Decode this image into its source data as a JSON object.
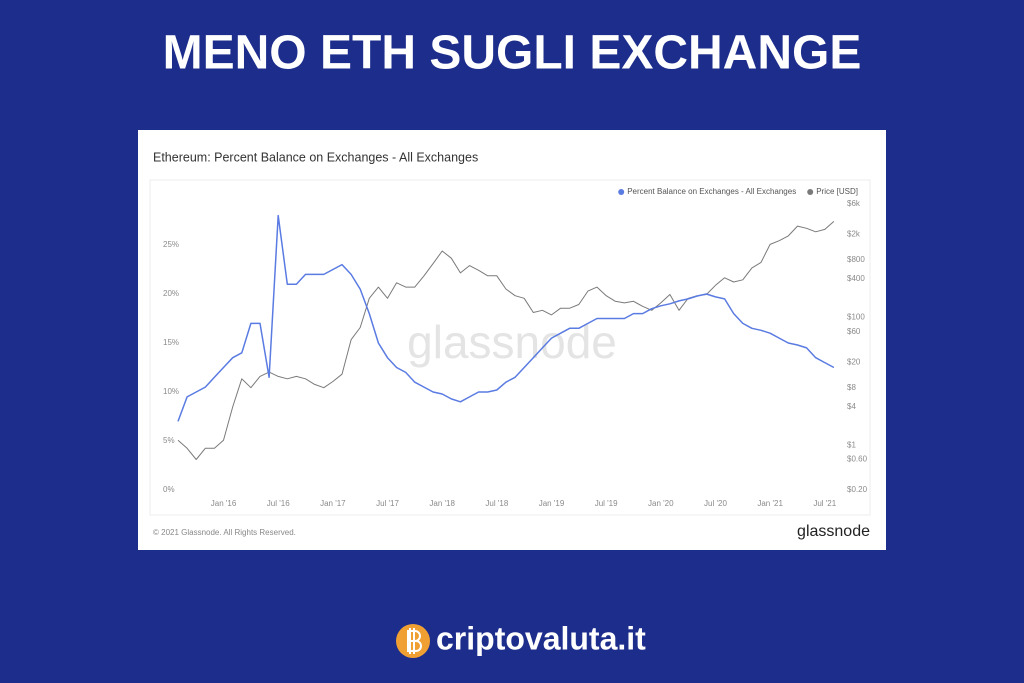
{
  "header": {
    "title": "MENO ETH SUGLI EXCHANGE"
  },
  "chart_data": {
    "type": "line",
    "title": "Ethereum: Percent Balance on Exchanges - All Exchanges",
    "watermark": "glassnode",
    "credit": "© 2021 Glassnode. All Rights Reserved.",
    "logo": "glassnode",
    "x": [
      "2015-08",
      "2015-09",
      "2015-10",
      "2015-11",
      "2015-12",
      "2016-01",
      "2016-02",
      "2016-03",
      "2016-04",
      "2016-05",
      "2016-06",
      "2016-07",
      "2016-08",
      "2016-09",
      "2016-10",
      "2016-11",
      "2016-12",
      "2017-01",
      "2017-02",
      "2017-03",
      "2017-04",
      "2017-05",
      "2017-06",
      "2017-07",
      "2017-08",
      "2017-09",
      "2017-10",
      "2017-11",
      "2017-12",
      "2018-01",
      "2018-02",
      "2018-03",
      "2018-04",
      "2018-05",
      "2018-06",
      "2018-07",
      "2018-08",
      "2018-09",
      "2018-10",
      "2018-11",
      "2018-12",
      "2019-01",
      "2019-02",
      "2019-03",
      "2019-04",
      "2019-05",
      "2019-06",
      "2019-07",
      "2019-08",
      "2019-09",
      "2019-10",
      "2019-11",
      "2019-12",
      "2020-01",
      "2020-02",
      "2020-03",
      "2020-04",
      "2020-05",
      "2020-06",
      "2020-07",
      "2020-08",
      "2020-09",
      "2020-10",
      "2020-11",
      "2020-12",
      "2021-01",
      "2021-02",
      "2021-03",
      "2021-04",
      "2021-05",
      "2021-06",
      "2021-07",
      "2021-08"
    ],
    "xlim": [
      "2015-08",
      "2021-09"
    ],
    "xticks": [
      {
        "value": "2016-01",
        "label": "Jan '16"
      },
      {
        "value": "2016-07",
        "label": "Jul '16"
      },
      {
        "value": "2017-01",
        "label": "Jan '17"
      },
      {
        "value": "2017-07",
        "label": "Jul '17"
      },
      {
        "value": "2018-01",
        "label": "Jan '18"
      },
      {
        "value": "2018-07",
        "label": "Jul '18"
      },
      {
        "value": "2019-01",
        "label": "Jan '19"
      },
      {
        "value": "2019-07",
        "label": "Jul '19"
      },
      {
        "value": "2020-01",
        "label": "Jan '20"
      },
      {
        "value": "2020-07",
        "label": "Jul '20"
      },
      {
        "value": "2021-01",
        "label": "Jan '21"
      },
      {
        "value": "2021-07",
        "label": "Jul '21"
      }
    ],
    "ylim": [
      0,
      30
    ],
    "yticks": [
      {
        "value": 0,
        "label": "0%"
      },
      {
        "value": 5,
        "label": "5%"
      },
      {
        "value": 10,
        "label": "10%"
      },
      {
        "value": 15,
        "label": "15%"
      },
      {
        "value": 20,
        "label": "20%"
      },
      {
        "value": 25,
        "label": "25%"
      }
    ],
    "y2lim": [
      0.2,
      8000
    ],
    "y2scale": "log",
    "y2ticks": [
      {
        "value": 0.2,
        "label": "$0.20"
      },
      {
        "value": 0.6,
        "label": "$0.60"
      },
      {
        "value": 1,
        "label": "$1"
      },
      {
        "value": 4,
        "label": "$4"
      },
      {
        "value": 8,
        "label": "$8"
      },
      {
        "value": 20,
        "label": "$20"
      },
      {
        "value": 60,
        "label": "$60"
      },
      {
        "value": 100,
        "label": "$100"
      },
      {
        "value": 400,
        "label": "$400"
      },
      {
        "value": 800,
        "label": "$800"
      },
      {
        "value": 2000,
        "label": "$2k"
      },
      {
        "value": 6000,
        "label": "$6k"
      }
    ],
    "grid": false,
    "legend": "top-right",
    "series": [
      {
        "name": "Percent Balance on Exchanges - All Exchanges",
        "color": "#5a7be2",
        "values": [
          7,
          9.5,
          10,
          10.5,
          11.5,
          12.5,
          13.5,
          14,
          17,
          17,
          11.5,
          28,
          21,
          21,
          22,
          22,
          22,
          22.5,
          23,
          22,
          20.5,
          18,
          15,
          13.5,
          12.5,
          12,
          11,
          10.5,
          10,
          9.8,
          9.3,
          9,
          9.5,
          10,
          10,
          10.2,
          11,
          11.5,
          12.5,
          13.5,
          14.5,
          15.5,
          16,
          16.5,
          16.5,
          17,
          17.5,
          17.5,
          17.5,
          17.5,
          18,
          18,
          18.5,
          18.8,
          19,
          19.3,
          19.5,
          19.8,
          20,
          19.7,
          19.5,
          18,
          17,
          16.5,
          16.3,
          16,
          15.5,
          15,
          14.8,
          14.5,
          13.5,
          13,
          12.5
        ]
      },
      {
        "name": "Price [USD]",
        "color": "#7a7a7a",
        "axis": "y2",
        "values": [
          1.2,
          0.9,
          0.6,
          0.9,
          0.9,
          1.2,
          4,
          11,
          8,
          12,
          14,
          12,
          11,
          12,
          11,
          9,
          8,
          10,
          13,
          45,
          70,
          200,
          300,
          200,
          350,
          300,
          300,
          450,
          700,
          1100,
          850,
          500,
          650,
          550,
          450,
          450,
          280,
          220,
          200,
          120,
          130,
          110,
          140,
          140,
          160,
          260,
          300,
          220,
          180,
          170,
          180,
          150,
          130,
          170,
          230,
          130,
          200,
          220,
          230,
          320,
          420,
          360,
          390,
          600,
          730,
          1400,
          1600,
          1900,
          2700,
          2500,
          2200,
          2400,
          3200
        ]
      }
    ]
  },
  "footer": {
    "brand": "criptovaluta.it"
  }
}
